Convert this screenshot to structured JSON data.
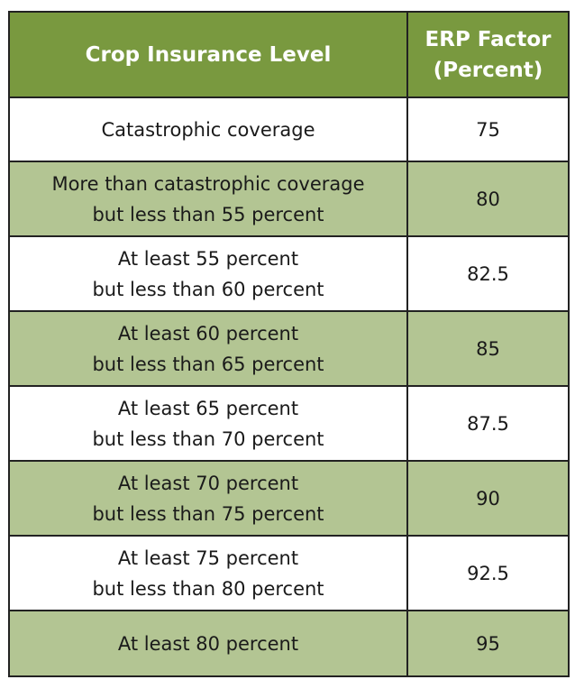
{
  "colors": {
    "header_bg": "#79993f",
    "header_text": "#ffffff",
    "row_white": "#ffffff",
    "row_green": "#b3c593",
    "border": "#222222"
  },
  "table": {
    "headers": {
      "level": "Crop Insurance Level",
      "factor_line1": "ERP Factor",
      "factor_line2": "(Percent)"
    },
    "rows": [
      {
        "level": [
          "Catastrophic coverage"
        ],
        "factor": "75"
      },
      {
        "level": [
          "More than catastrophic coverage",
          "but less than 55 percent"
        ],
        "factor": "80"
      },
      {
        "level": [
          "At least 55 percent",
          "but less than 60 percent"
        ],
        "factor": "82.5"
      },
      {
        "level": [
          "At least 60 percent",
          "but less than 65 percent"
        ],
        "factor": "85"
      },
      {
        "level": [
          "At least 65 percent",
          "but less than 70 percent"
        ],
        "factor": "87.5"
      },
      {
        "level": [
          "At least 70 percent",
          "but less than 75 percent"
        ],
        "factor": "90"
      },
      {
        "level": [
          "At least 75 percent",
          "but less than 80 percent"
        ],
        "factor": "92.5"
      },
      {
        "level": [
          "At least 80 percent"
        ],
        "factor": "95"
      }
    ]
  }
}
